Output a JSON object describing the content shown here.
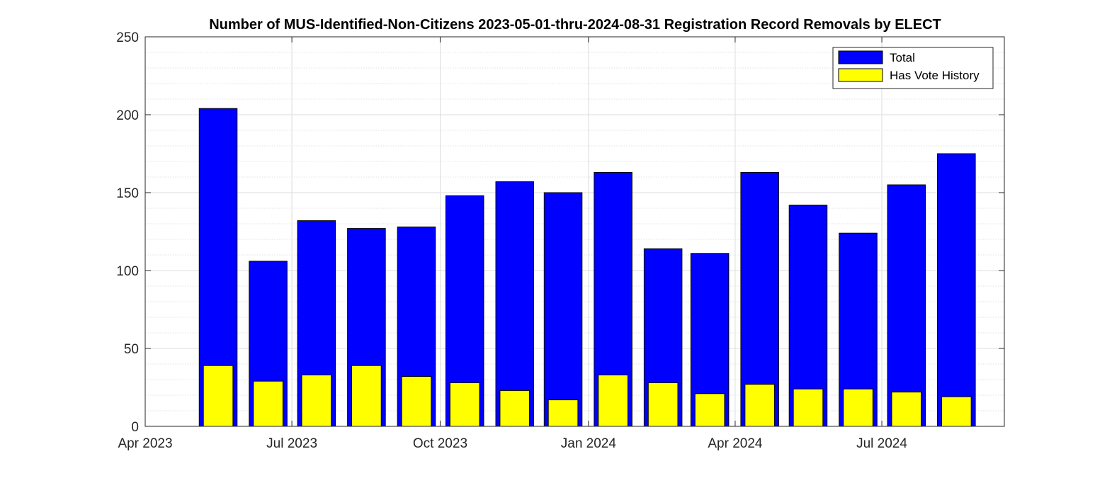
{
  "chart_data": {
    "type": "bar",
    "title": "Number of MUS-Identified-Non-Citizens 2023-05-01-thru-2024-08-31 Registration Record Removals by ELECT",
    "xlabel": "",
    "ylabel": "",
    "ylim": [
      0,
      250
    ],
    "yticks": [
      0,
      50,
      100,
      150,
      200,
      250
    ],
    "xlim": [
      "2023-04-01",
      "2024-09-15"
    ],
    "xticks": [
      {
        "date": "2023-04-01",
        "label": "Apr 2023"
      },
      {
        "date": "2023-07-01",
        "label": "Jul 2023"
      },
      {
        "date": "2023-10-01",
        "label": "Oct 2023"
      },
      {
        "date": "2024-01-01",
        "label": "Jan 2024"
      },
      {
        "date": "2024-04-01",
        "label": "Apr 2024"
      },
      {
        "date": "2024-07-01",
        "label": "Jul 2024"
      }
    ],
    "grid": true,
    "legend_position": "top-right",
    "x": [
      "2023-05-01",
      "2023-06-01",
      "2023-07-01",
      "2023-08-01",
      "2023-09-01",
      "2023-10-01",
      "2023-11-01",
      "2023-12-01",
      "2024-01-01",
      "2024-02-01",
      "2024-03-01",
      "2024-04-01",
      "2024-05-01",
      "2024-06-01",
      "2024-07-01",
      "2024-08-01"
    ],
    "series": [
      {
        "name": "Total",
        "color": "#0000FF",
        "values": [
          204,
          106,
          132,
          127,
          128,
          148,
          157,
          150,
          163,
          114,
          111,
          163,
          142,
          124,
          155,
          175
        ]
      },
      {
        "name": "Has Vote History",
        "color": "#FFFF00",
        "values": [
          39,
          29,
          33,
          39,
          32,
          28,
          23,
          17,
          33,
          28,
          21,
          27,
          24,
          24,
          22,
          19
        ]
      }
    ]
  }
}
